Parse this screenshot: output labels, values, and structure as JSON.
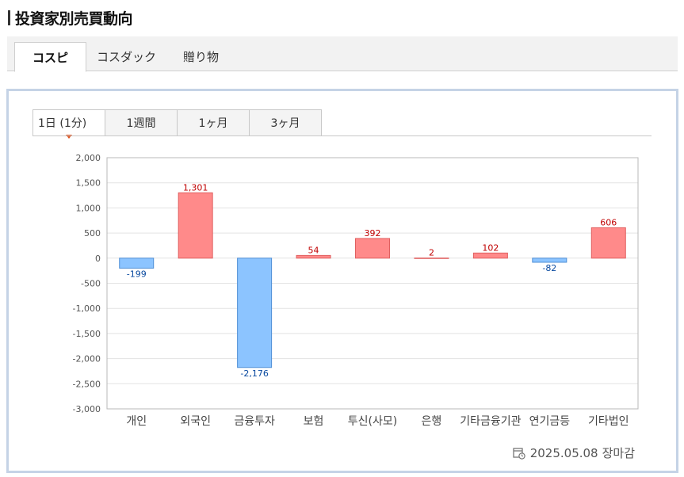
{
  "header": {
    "title": "投資家別売買動向"
  },
  "main_tabs": [
    {
      "label": "コスピ",
      "active": true
    },
    {
      "label": "コスダック",
      "active": false
    },
    {
      "label": "贈り物",
      "active": false
    }
  ],
  "period_tabs": [
    {
      "label": "1日 (1分)",
      "active": true
    },
    {
      "label": "1週間",
      "active": false
    },
    {
      "label": "1ヶ月",
      "active": false
    },
    {
      "label": "3ヶ月",
      "active": false
    }
  ],
  "footer": {
    "date": "2025.05.08",
    "status": "장마감",
    "icon": "calendar-clock-icon"
  },
  "colors": {
    "positive_fill": "#ff8a8a",
    "positive_stroke": "#e06060",
    "positive_label": "#c00000",
    "negative_fill": "#8cc4ff",
    "negative_stroke": "#4f8fd6",
    "negative_label": "#0a4aa0"
  },
  "chart_data": {
    "type": "bar",
    "categories": [
      "개인",
      "외국인",
      "금융투자",
      "보험",
      "투신(사모)",
      "은행",
      "기타금융기관",
      "연기금등",
      "기타법인"
    ],
    "values": [
      -199,
      1301,
      -2176,
      54,
      392,
      2,
      102,
      -82,
      606
    ],
    "data_labels": [
      "-199",
      "1,301",
      "-2,176",
      "54",
      "392",
      "2",
      "102",
      "-82",
      "606"
    ],
    "ylim": [
      -3000,
      2000
    ],
    "yticks": [
      2000,
      1500,
      1000,
      500,
      0,
      -500,
      -1000,
      -1500,
      -2000,
      -2500,
      -3000
    ],
    "ytick_labels": [
      "2,000",
      "1,500",
      "1,000",
      "500",
      "0",
      "-500",
      "-1,000",
      "-1,500",
      "-2,000",
      "-2,500",
      "-3,000"
    ],
    "grid": true,
    "title": "",
    "xlabel": "",
    "ylabel": ""
  }
}
